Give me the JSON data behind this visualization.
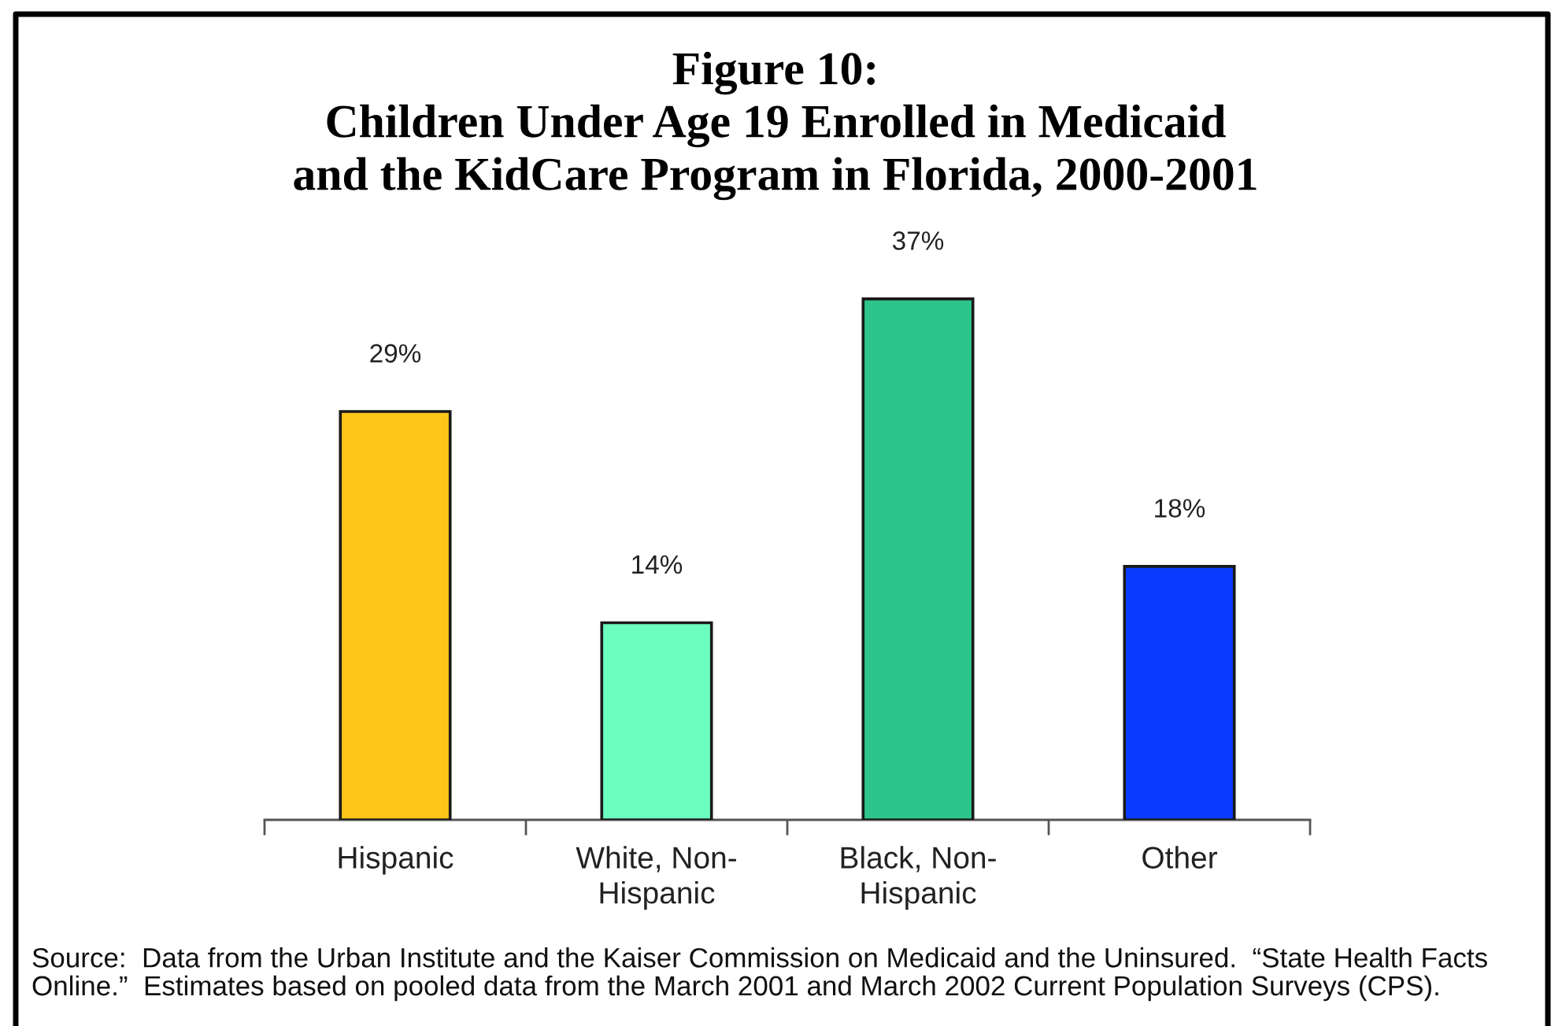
{
  "chart_data": {
    "type": "bar",
    "title": "Figure 10:\nChildren Under Age 19 Enrolled in Medicaid\nand the KidCare Program in Florida, 2000-2001",
    "categories": [
      "Hispanic",
      "White, Non-\nHispanic",
      "Black, Non-\nHispanic",
      "Other"
    ],
    "values": [
      29,
      14,
      37,
      18
    ],
    "colors": [
      "#ffc61a",
      "#6bffbf",
      "#2dc58a",
      "#0a3cff"
    ],
    "value_labels": [
      "29%",
      "14%",
      "37%",
      "18%"
    ],
    "annotations": [
      "Source:  Data from the Urban Institute and the Kaiser Commission on Medicaid and the Uninsured.  “State Health Facts\nOnline.”  Estimates based on pooled data from the March 2001 and March 2002 Current Population Surveys (CPS)."
    ]
  }
}
